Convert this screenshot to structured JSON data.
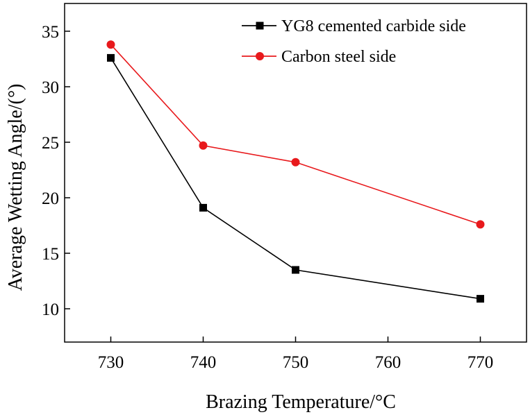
{
  "chart_data": {
    "type": "line",
    "title": "",
    "xlabel": "Brazing Temperature/°C",
    "ylabel": "Average Wetting Angle/(°)",
    "x": [
      730,
      740,
      750,
      770
    ],
    "xlim": [
      725,
      775
    ],
    "ylim": [
      7,
      37.5
    ],
    "xticks": [
      730,
      740,
      750,
      760,
      770
    ],
    "yticks": [
      10,
      15,
      20,
      25,
      30,
      35
    ],
    "xtick_labels": [
      "730",
      "740",
      "750",
      "760",
      "770"
    ],
    "ytick_labels": [
      "10",
      "15",
      "20",
      "25",
      "30",
      "35"
    ],
    "grid": false,
    "legend_position": "top-right",
    "series": [
      {
        "name": "YG8 cemented carbide side",
        "values": [
          32.6,
          19.1,
          13.5,
          10.9
        ],
        "color": "#000000",
        "marker": "square"
      },
      {
        "name": "Carbon steel side",
        "values": [
          33.8,
          24.7,
          23.2,
          17.6
        ],
        "color": "#e8191c",
        "marker": "circle"
      }
    ]
  }
}
